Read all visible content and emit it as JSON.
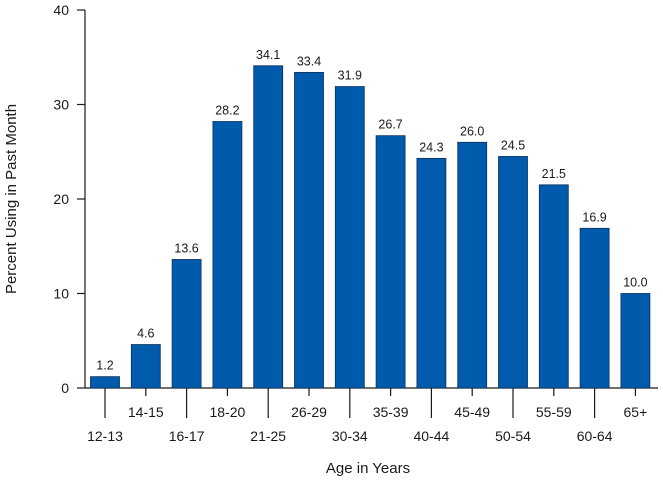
{
  "chart_data": {
    "type": "bar",
    "categories": [
      "12-13",
      "14-15",
      "16-17",
      "18-20",
      "21-25",
      "26-29",
      "30-34",
      "35-39",
      "40-44",
      "45-49",
      "50-54",
      "55-59",
      "60-64",
      "65+"
    ],
    "values": [
      1.2,
      4.6,
      13.6,
      28.2,
      34.1,
      33.4,
      31.9,
      26.7,
      24.3,
      26.0,
      24.5,
      21.5,
      16.9,
      10.0
    ],
    "value_labels": [
      "1.2",
      "4.6",
      "13.6",
      "28.2",
      "34.1",
      "33.4",
      "31.9",
      "26.7",
      "24.3",
      "26.0",
      "24.5",
      "21.5",
      "16.9",
      "10.0"
    ],
    "title": "",
    "xlabel": "Age in Years",
    "ylabel": "Percent Using in Past Month",
    "ylim": [
      0,
      40
    ],
    "yticks": [
      "0",
      "10",
      "20",
      "30",
      "40"
    ],
    "x_tick_labels_staggered": true,
    "grid": false,
    "bar_color": "#005bac"
  }
}
